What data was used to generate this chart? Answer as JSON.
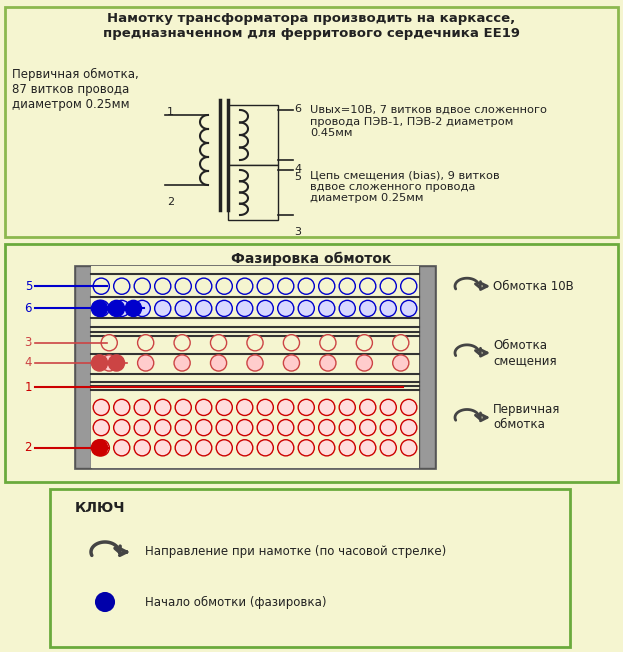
{
  "bg_color": "#f5f5d0",
  "border_color_top": "#8cb84e",
  "border_color_mid": "#6aaa3c",
  "border_color_bot": "#6aaa3c",
  "title_top": "Намотку трансформатора производить на каркассе,\nпредназначенном для ферритового сердечника ЕЕ19",
  "text_left": "Первичная обмотка,\n87 витков провода\nдиаметром 0.25мм",
  "text_right_top": "Uвых=10В, 7 витков вдвое сложенного\nпровода ПЭВ-1, ПЭВ-2 диаметром\n0.45мм",
  "text_right_bot": "Цепь смещения (bias), 9 витков\nвдвое сложенного провода\nдиаметром 0.25мм",
  "phase_title": "Фазировка обмоток",
  "legend_10v": "Обмотка 10В",
  "legend_bias": "Обмотка\nсмещения",
  "legend_primary": "Первичная\nобмотка",
  "key_title": "КЛЮЧ",
  "key_text1": "Направление при намотке (по часовой стрелке)",
  "key_text2": "Начало обмотки (фазировка)",
  "blue": "#0000cc",
  "blue_fill": "#d8d8ff",
  "red": "#cc0000",
  "red_fill": "#ffdddd",
  "salmon": "#cc4444",
  "salmon_fill": "#ffcccc",
  "dark": "#222222",
  "arrow_color": "#555555"
}
